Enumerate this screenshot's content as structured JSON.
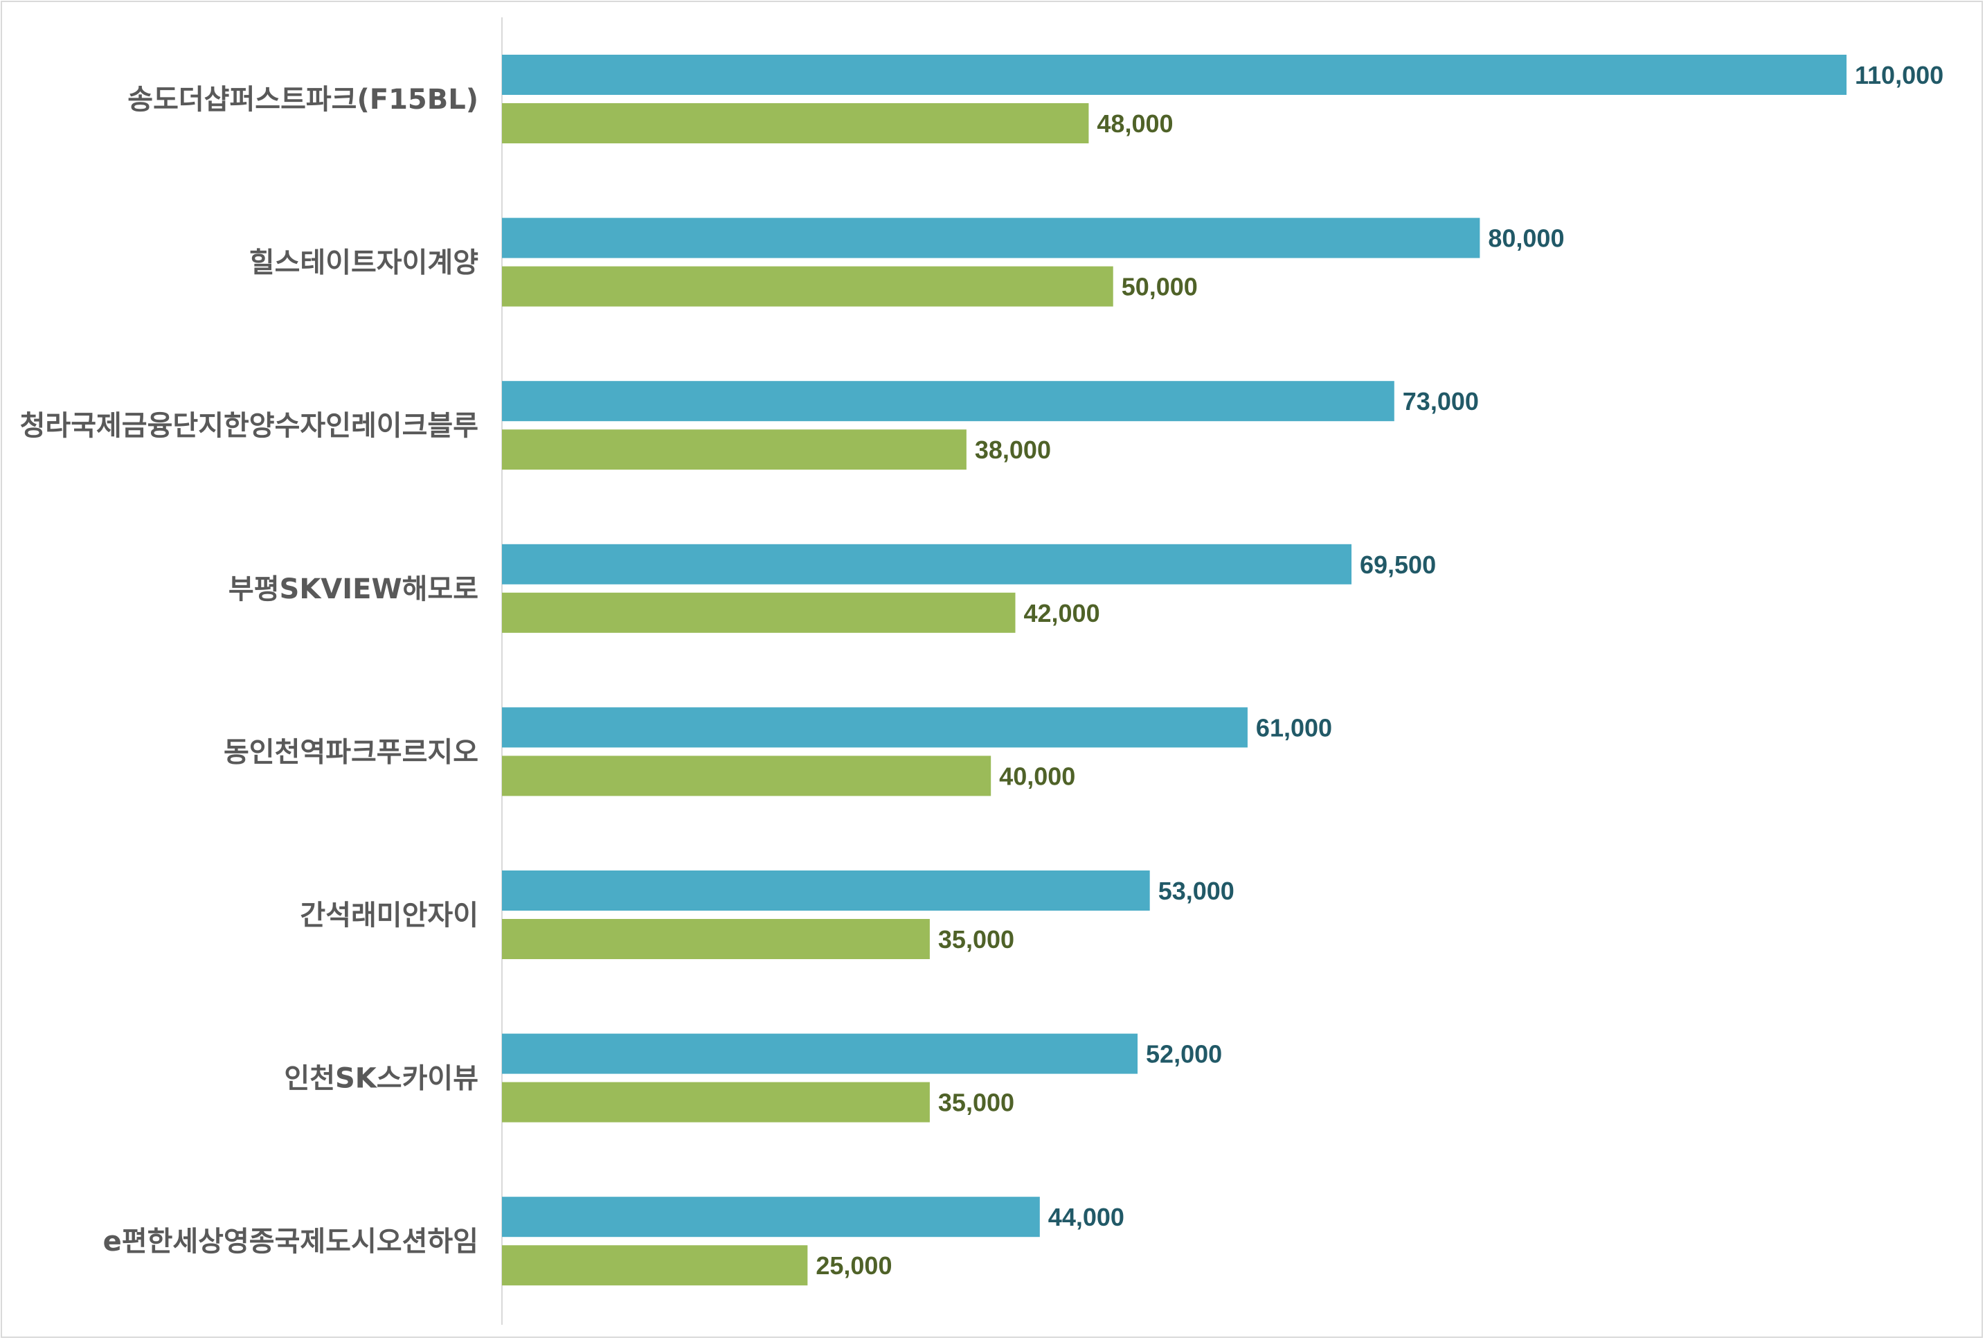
{
  "colors": {
    "series_a": "#4bacc6",
    "series_b": "#9bbb59",
    "label_a": "#215967",
    "label_b": "#4f6228",
    "axis": "#d9d9d9",
    "category_text": "#595959"
  },
  "chart_data": {
    "type": "bar",
    "orientation": "horizontal",
    "title": "",
    "xlabel": "",
    "ylabel": "",
    "grid": false,
    "legend": "none",
    "xlim": [
      0,
      110000
    ],
    "categories": [
      "송도더샵퍼스트파크(F15BL)",
      "힐스테이트자이계양",
      "청라국제금융단지한양수자인레이크블루",
      "부평SKVIEW해모로",
      "동인천역파크푸르지오",
      "간석래미안자이",
      "인천SK스카이뷰",
      "e편한세상영종국제도시오션하임"
    ],
    "series": [
      {
        "values": [
          110000,
          80000,
          73000,
          69500,
          61000,
          53000,
          52000,
          44000
        ],
        "labels": [
          "110,000",
          "80,000",
          "73,000",
          "69,500",
          "61,000",
          "53,000",
          "52,000",
          "44,000"
        ]
      },
      {
        "values": [
          48000,
          50000,
          38000,
          42000,
          40000,
          35000,
          35000,
          25000
        ],
        "labels": [
          "48,000",
          "50,000",
          "38,000",
          "42,000",
          "40,000",
          "35,000",
          "35,000",
          "25,000"
        ]
      }
    ]
  }
}
